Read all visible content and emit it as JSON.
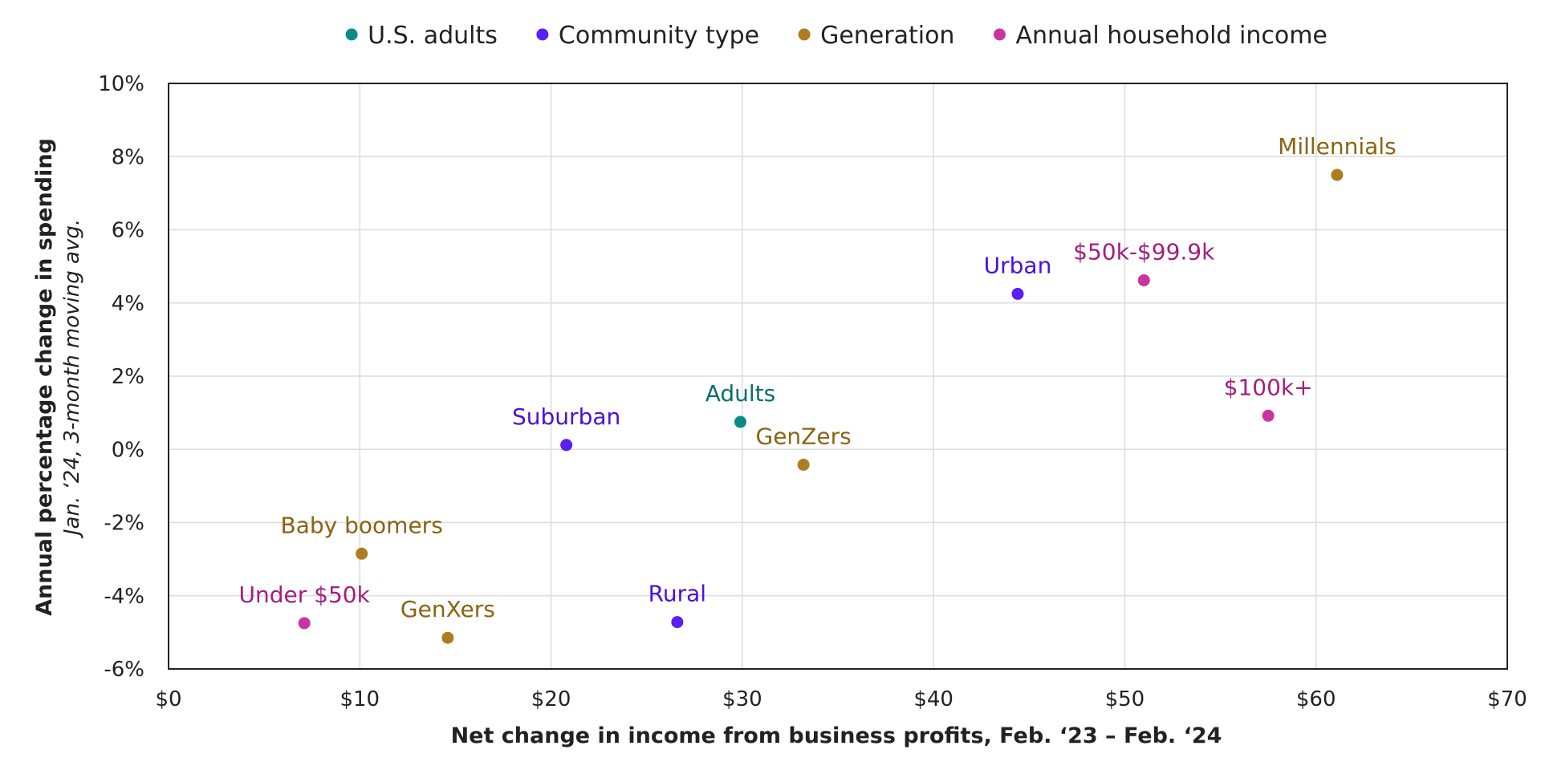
{
  "chart_data": {
    "type": "scatter",
    "title": "",
    "xlabel": "Net change in income from business profits, Feb. ‘23 – Feb. ‘24",
    "ylabel": "Annual percentage change in spending",
    "ylabel_sub": "Jan. ‘24, 3-month moving avg.",
    "xlim": [
      0,
      70
    ],
    "ylim": [
      -6,
      10
    ],
    "x_ticks": [
      0,
      10,
      20,
      30,
      40,
      50,
      60,
      70
    ],
    "x_tick_labels": [
      "$0",
      "$10",
      "$20",
      "$30",
      "$40",
      "$50",
      "$60",
      "$70"
    ],
    "y_ticks": [
      -6,
      -4,
      -2,
      0,
      2,
      4,
      6,
      8,
      10
    ],
    "y_tick_labels": [
      "-6%",
      "-4%",
      "-2%",
      "0%",
      "2%",
      "4%",
      "6%",
      "8%",
      "10%"
    ],
    "grid": true,
    "legend_position": "top-center",
    "series": [
      {
        "name": "U.S. adults",
        "color": "#0b8b85",
        "label_color": "#06706b",
        "points": [
          {
            "label": "Adults",
            "x": 29.9,
            "y": 0.75
          }
        ]
      },
      {
        "name": "Community type",
        "color": "#5a1ff2",
        "label_color": "#4a10e0",
        "points": [
          {
            "label": "Suburban",
            "x": 20.8,
            "y": 0.12
          },
          {
            "label": "Urban",
            "x": 44.4,
            "y": 4.25
          },
          {
            "label": "Rural",
            "x": 26.6,
            "y": -4.72
          }
        ]
      },
      {
        "name": "Generation",
        "color": "#ad7d1f",
        "label_color": "#8a6410",
        "points": [
          {
            "label": "Millennials",
            "x": 61.1,
            "y": 7.5
          },
          {
            "label": "GenZers",
            "x": 33.2,
            "y": -0.42
          },
          {
            "label": "Baby boomers",
            "x": 10.1,
            "y": -2.85
          },
          {
            "label": "GenXers",
            "x": 14.6,
            "y": -5.15
          }
        ]
      },
      {
        "name": "Annual household income",
        "color": "#c9359f",
        "label_color": "#a31e7f",
        "points": [
          {
            "label": "$50k-$99.9k",
            "x": 51.0,
            "y": 4.62
          },
          {
            "label": "$100k+",
            "x": 57.5,
            "y": 0.92
          },
          {
            "label": "Under $50k",
            "x": 7.1,
            "y": -4.75
          }
        ]
      }
    ]
  }
}
